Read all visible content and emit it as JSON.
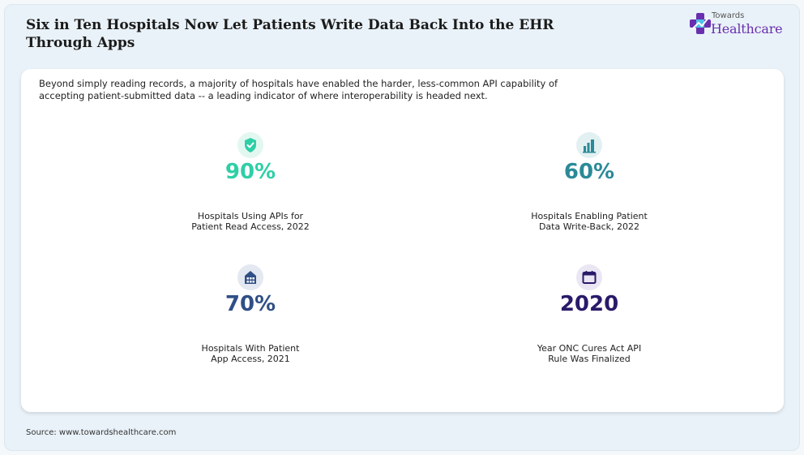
{
  "header": {
    "title": "Six in Ten Hospitals Now Let Patients Write Data Back Into the EHR Through Apps",
    "logo_top": "Towards",
    "logo_bottom": "Healthcare"
  },
  "intro": "Beyond simply reading records, a majority of hospitals have enabled the harder, less-common API capability of accepting patient-submitted data -- a leading indicator of where interoperability is headed next.",
  "stats": [
    {
      "value": "90%",
      "label_line1": "Hospitals Using APIs for",
      "label_line2": "Patient Read Access, 2022",
      "icon": "shield-check-icon",
      "color": "#2fcfa6",
      "bg": "#e3f7f1"
    },
    {
      "value": "60%",
      "label_line1": "Hospitals Enabling Patient",
      "label_line2": "Data Write-Back, 2022",
      "icon": "bar-chart-icon",
      "color": "#2a8a98",
      "bg": "#e2f0f2"
    },
    {
      "value": "70%",
      "label_line1": "Hospitals With Patient",
      "label_line2": "App Access, 2021",
      "icon": "hospital-building-icon",
      "color": "#2f4f86",
      "bg": "#e3e8f1"
    },
    {
      "value": "2020",
      "label_line1": "Year ONC Cures Act API",
      "label_line2": "Rule Was Finalized",
      "icon": "calendar-icon",
      "color": "#2a1a6a",
      "bg": "#ebe6f3"
    }
  ],
  "footer": {
    "source": "Source: www.towardshealthcare.com"
  }
}
